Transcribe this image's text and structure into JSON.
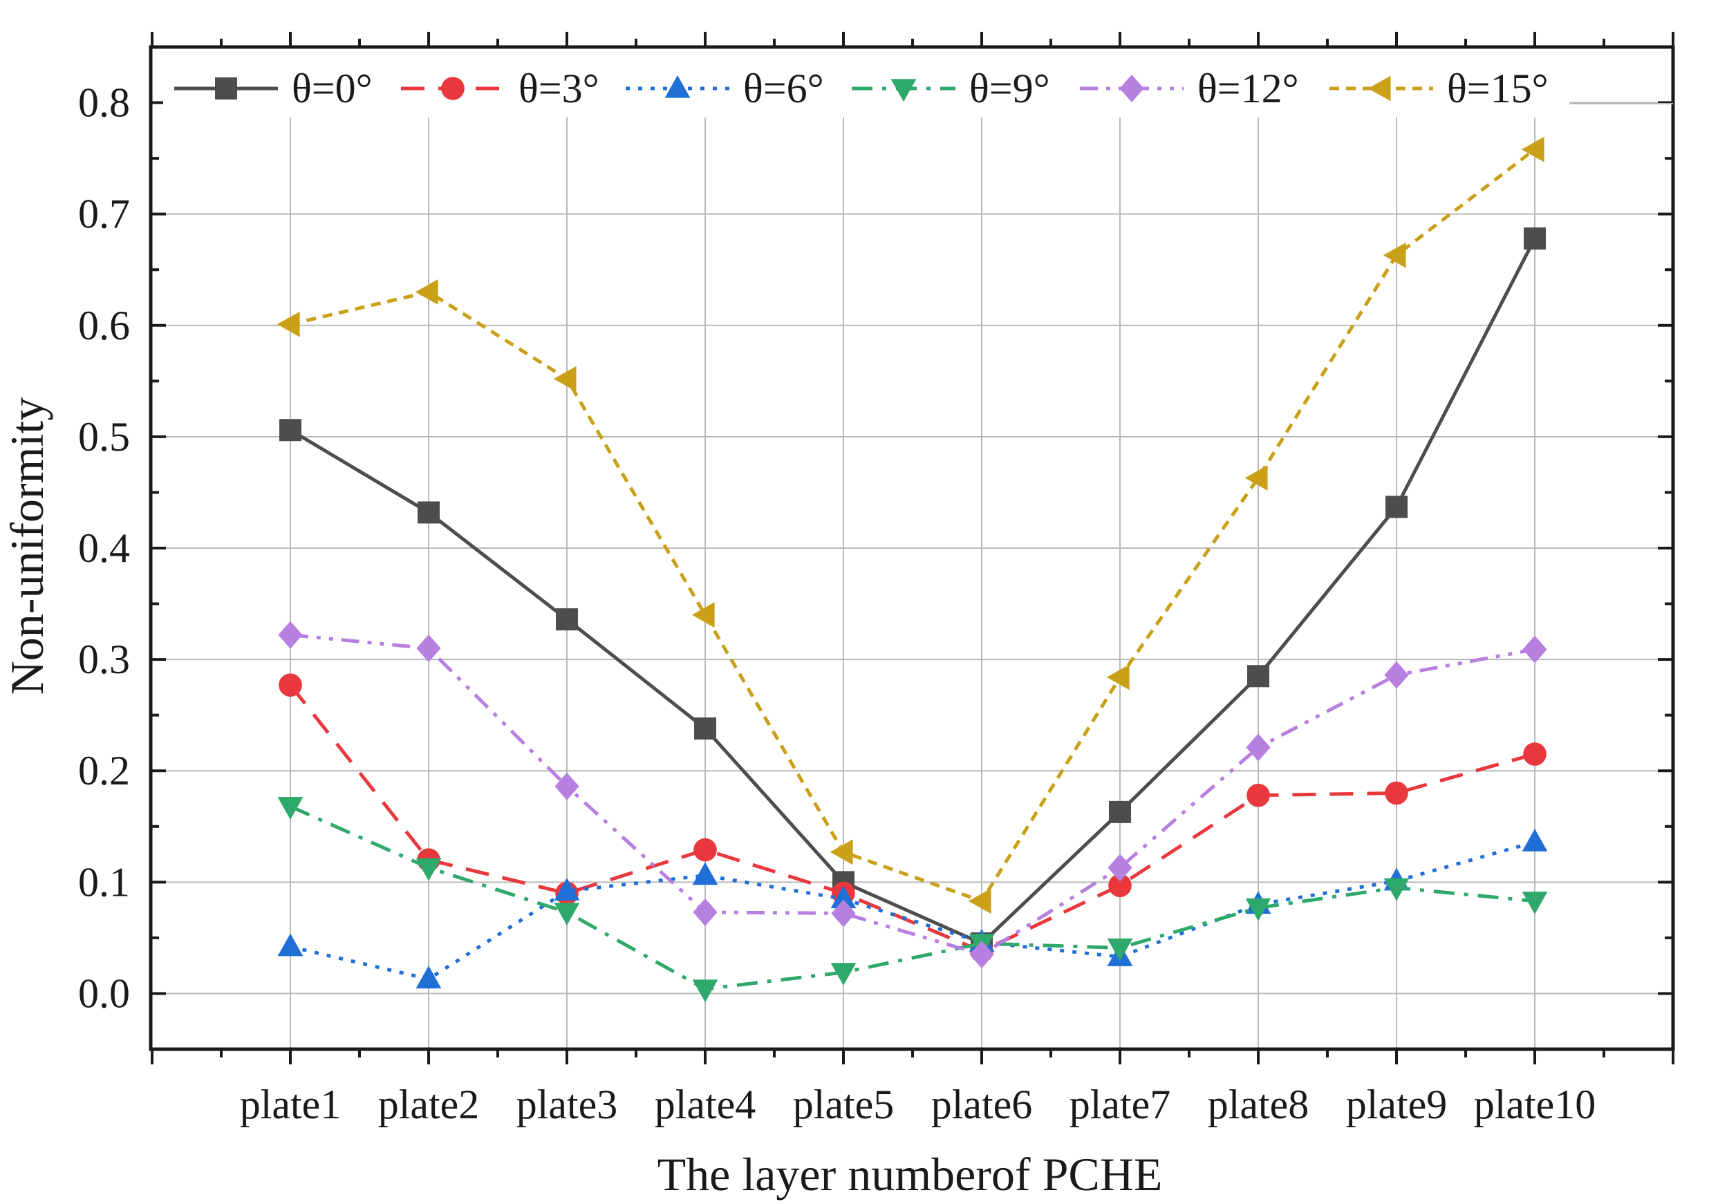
{
  "chart_data": {
    "type": "line",
    "title": "",
    "xlabel": "The layer numberof PCHE",
    "ylabel": "Non-uniformity",
    "categories": [
      "plate1",
      "plate2",
      "plate3",
      "plate4",
      "plate5",
      "plate6",
      "plate7",
      "plate8",
      "plate9",
      "plate10"
    ],
    "ylim": [
      -0.05,
      0.85
    ],
    "yticks": [
      "0.0",
      "0.1",
      "0.2",
      "0.3",
      "0.4",
      "0.5",
      "0.6",
      "0.7",
      "0.8"
    ],
    "grid": true,
    "legend_position": "top",
    "series": [
      {
        "name": "θ=0°",
        "color": "#4d4d4d",
        "marker": "square",
        "line": "solid",
        "values": [
          0.506,
          0.432,
          0.336,
          0.238,
          0.1,
          0.045,
          0.163,
          0.285,
          0.437,
          0.678
        ]
      },
      {
        "name": "θ=3°",
        "color": "#e8383d",
        "marker": "circle",
        "line": "dash",
        "values": [
          0.277,
          0.12,
          0.09,
          0.129,
          0.09,
          0.038,
          0.097,
          0.178,
          0.18,
          0.215
        ]
      },
      {
        "name": "θ=6°",
        "color": "#1f6fd6",
        "marker": "triangle-up",
        "line": "dot",
        "values": [
          0.042,
          0.013,
          0.092,
          0.106,
          0.085,
          0.046,
          0.033,
          0.08,
          0.101,
          0.136
        ]
      },
      {
        "name": "θ=9°",
        "color": "#2fa86b",
        "marker": "triangle-down",
        "line": "dashdot",
        "values": [
          0.168,
          0.113,
          0.073,
          0.004,
          0.019,
          0.045,
          0.041,
          0.077,
          0.095,
          0.083
        ]
      },
      {
        "name": "θ=12°",
        "color": "#b77fdf",
        "marker": "diamond",
        "line": "dashdotdot",
        "values": [
          0.322,
          0.31,
          0.186,
          0.073,
          0.072,
          0.035,
          0.113,
          0.221,
          0.286,
          0.309
        ]
      },
      {
        "name": "θ=15°",
        "color": "#c9a018",
        "marker": "triangle-left",
        "line": "shortdash",
        "values": [
          0.601,
          0.63,
          0.552,
          0.34,
          0.127,
          0.083,
          0.284,
          0.463,
          0.663,
          0.758
        ]
      }
    ]
  }
}
